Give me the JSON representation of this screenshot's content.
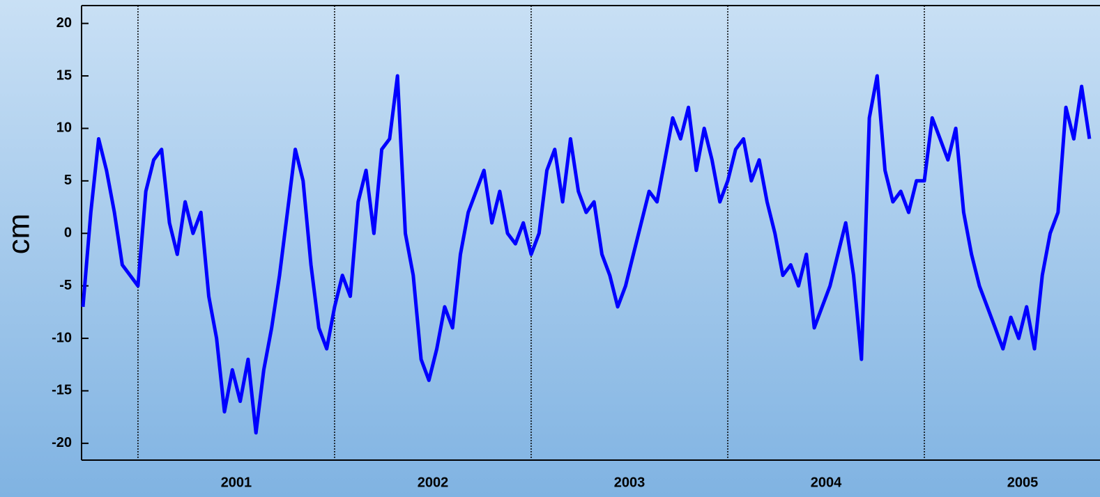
{
  "chart_data": {
    "type": "line",
    "y_label": "cm",
    "x": [
      2000.72,
      2000.76,
      2000.8,
      2000.84,
      2000.88,
      2000.92,
      2000.96,
      2001.0,
      2001.04,
      2001.08,
      2001.12,
      2001.16,
      2001.2,
      2001.24,
      2001.28,
      2001.32,
      2001.36,
      2001.4,
      2001.44,
      2001.48,
      2001.52,
      2001.56,
      2001.6,
      2001.64,
      2001.68,
      2001.72,
      2001.76,
      2001.8,
      2001.84,
      2001.88,
      2001.92,
      2001.96,
      2002.0,
      2002.04,
      2002.08,
      2002.12,
      2002.16,
      2002.2,
      2002.24,
      2002.28,
      2002.32,
      2002.36,
      2002.4,
      2002.44,
      2002.48,
      2002.52,
      2002.56,
      2002.6,
      2002.64,
      2002.68,
      2002.72,
      2002.76,
      2002.8,
      2002.84,
      2002.88,
      2002.92,
      2002.96,
      2003.0,
      2003.04,
      2003.08,
      2003.12,
      2003.16,
      2003.2,
      2003.24,
      2003.28,
      2003.32,
      2003.36,
      2003.4,
      2003.44,
      2003.48,
      2003.52,
      2003.56,
      2003.6,
      2003.64,
      2003.68,
      2003.72,
      2003.76,
      2003.8,
      2003.84,
      2003.88,
      2003.92,
      2003.96,
      2004.0,
      2004.04,
      2004.08,
      2004.12,
      2004.16,
      2004.2,
      2004.24,
      2004.28,
      2004.32,
      2004.36,
      2004.4,
      2004.44,
      2004.48,
      2004.52,
      2004.56,
      2004.6,
      2004.64,
      2004.68,
      2004.72,
      2004.76,
      2004.8,
      2004.84,
      2004.88,
      2004.92,
      2004.96,
      2005.0,
      2005.04,
      2005.08,
      2005.12,
      2005.16,
      2005.2,
      2005.24,
      2005.28,
      2005.32,
      2005.36,
      2005.4,
      2005.44,
      2005.48,
      2005.52,
      2005.56,
      2005.6,
      2005.64,
      2005.68,
      2005.72,
      2005.76,
      2005.8,
      2005.84
    ],
    "series": [
      {
        "color": "#0000ff",
        "values": [
          -7,
          2,
          9,
          6,
          2,
          -3,
          -4,
          -5,
          4,
          7,
          8,
          1,
          -2,
          3,
          0,
          2,
          -6,
          -10,
          -17,
          -13,
          -16,
          -12,
          -19,
          -13,
          -9,
          -4,
          2,
          8,
          5,
          -3,
          -9,
          -11,
          -7,
          -4,
          -6,
          3,
          6,
          0,
          8,
          9,
          15,
          0,
          -4,
          -12,
          -14,
          -11,
          -7,
          -9,
          -2,
          2,
          4,
          6,
          1,
          4,
          0,
          -1,
          1,
          -2,
          0,
          6,
          8,
          3,
          9,
          4,
          2,
          3,
          -2,
          -4,
          -7,
          -5,
          -2,
          1,
          4,
          3,
          7,
          11,
          9,
          12,
          6,
          10,
          7,
          3,
          5,
          8,
          9,
          5,
          7,
          3,
          0,
          -4,
          -3,
          -5,
          -2,
          -9,
          -7,
          -5,
          -2,
          1,
          -4,
          -12,
          11,
          15,
          6,
          3,
          4,
          2,
          5,
          5,
          11,
          9,
          7,
          10,
          2,
          -2,
          -5,
          -7,
          -9,
          -11,
          -8,
          -10,
          -7,
          -11,
          -4,
          0,
          2,
          12,
          9,
          14,
          9
        ]
      }
    ],
    "xlim": [
      2000.713,
      2005.858
    ],
    "xticks": [
      {
        "value": 2001.5,
        "label": "2001"
      },
      {
        "value": 2002.5,
        "label": "2002"
      },
      {
        "value": 2003.5,
        "label": "2003"
      },
      {
        "value": 2004.5,
        "label": "2004"
      },
      {
        "value": 2005.5,
        "label": "2005"
      }
    ],
    "year_lines": [
      2001,
      2002,
      2003,
      2004,
      2005
    ],
    "ylim": [
      -21.6,
      21.7
    ],
    "yticks": [
      -20,
      -15,
      -10,
      -5,
      0,
      5,
      10,
      15,
      20
    ]
  }
}
